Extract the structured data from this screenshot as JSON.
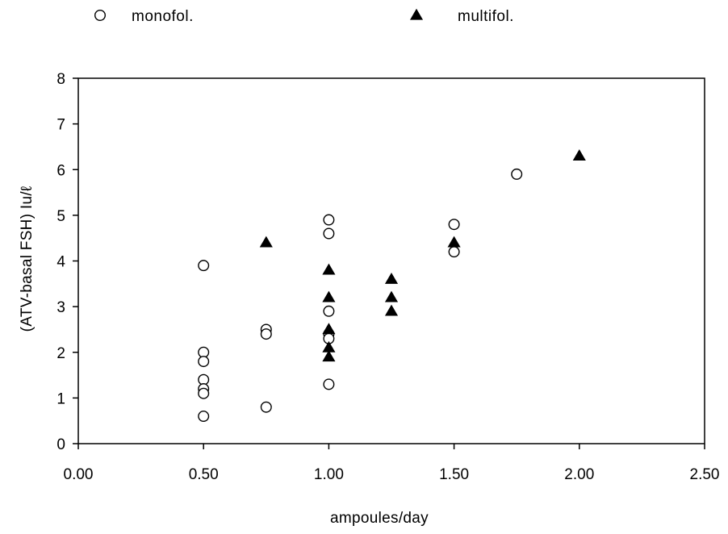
{
  "chart_data": {
    "type": "scatter",
    "title": "",
    "xlabel": "ampoules/day",
    "ylabel": "(ATV-basal FSH) Iu/ℓ",
    "xlim": [
      0,
      2.5
    ],
    "ylim": [
      0,
      8
    ],
    "x_ticks": [
      "0.00",
      "0.50",
      "1.00",
      "1.50",
      "2.00",
      "2.50"
    ],
    "y_ticks": [
      "0",
      "1",
      "2",
      "3",
      "4",
      "5",
      "6",
      "7",
      "8"
    ],
    "grid": false,
    "legend_position": "top",
    "series": [
      {
        "name": "monofol.",
        "marker": "open-circle",
        "color": "#000000",
        "points": [
          [
            0.5,
            3.9
          ],
          [
            0.5,
            2.0
          ],
          [
            0.5,
            1.8
          ],
          [
            0.5,
            1.4
          ],
          [
            0.5,
            1.2
          ],
          [
            0.5,
            1.1
          ],
          [
            0.5,
            0.6
          ],
          [
            0.75,
            2.5
          ],
          [
            0.75,
            2.4
          ],
          [
            0.75,
            0.8
          ],
          [
            1.0,
            4.9
          ],
          [
            1.0,
            4.6
          ],
          [
            1.0,
            2.9
          ],
          [
            1.0,
            2.4
          ],
          [
            1.0,
            2.3
          ],
          [
            1.0,
            1.3
          ],
          [
            1.5,
            4.8
          ],
          [
            1.5,
            4.2
          ],
          [
            1.75,
            5.9
          ]
        ]
      },
      {
        "name": "multifol.",
        "marker": "filled-triangle",
        "color": "#000000",
        "points": [
          [
            0.75,
            4.4
          ],
          [
            1.0,
            3.8
          ],
          [
            1.0,
            3.2
          ],
          [
            1.0,
            2.5
          ],
          [
            1.0,
            2.1
          ],
          [
            1.0,
            1.9
          ],
          [
            1.25,
            3.6
          ],
          [
            1.25,
            3.2
          ],
          [
            1.25,
            2.9
          ],
          [
            1.5,
            4.4
          ],
          [
            2.0,
            6.3
          ]
        ]
      }
    ]
  }
}
